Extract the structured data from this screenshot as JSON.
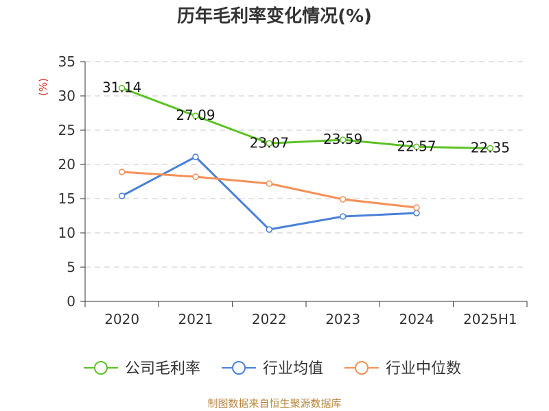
{
  "chart_data": {
    "type": "line",
    "title": "历年毛利率变化情况(%)",
    "ylabel": "(%)",
    "categories": [
      "2020",
      "2021",
      "2022",
      "2023",
      "2024",
      "2025H1"
    ],
    "ylim": [
      0,
      35
    ],
    "yticks": [
      "0",
      "5",
      "10",
      "15",
      "20",
      "25",
      "30",
      "35"
    ],
    "grid": true,
    "legend_position": "bottom",
    "series": [
      {
        "name": "公司毛利率",
        "color": "#5bc224",
        "values": [
          31.14,
          27.09,
          23.07,
          23.59,
          22.57,
          22.35
        ],
        "labels": [
          "31.14",
          "27.09",
          "23.07",
          "23.59",
          "22.57",
          "22.35"
        ]
      },
      {
        "name": "行业均值",
        "color": "#4a80d8",
        "values": [
          15.4,
          21.1,
          10.5,
          12.4,
          12.9,
          null
        ]
      },
      {
        "name": "行业中位数",
        "color": "#f59058",
        "values": [
          18.9,
          18.2,
          17.2,
          14.9,
          13.7,
          null
        ]
      }
    ],
    "source": "制图数据来自恒生聚源数据库"
  }
}
